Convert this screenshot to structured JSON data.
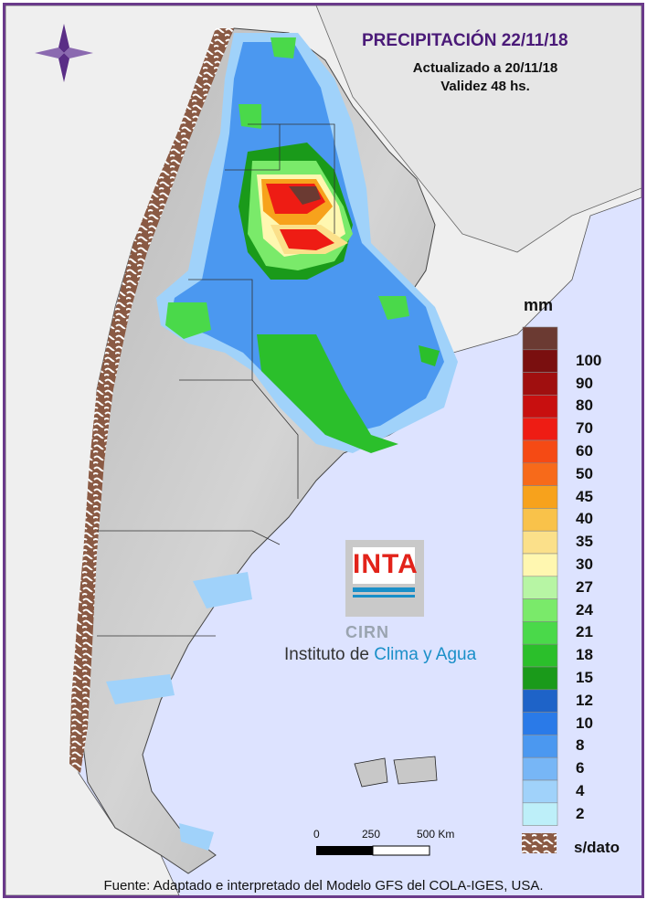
{
  "header": {
    "title": "PRECIPITACIÓN 22/11/18",
    "updated": "Actualizado a 20/11/18",
    "validity": "Validez 48 hs."
  },
  "legend": {
    "unit": "mm",
    "levels": [
      {
        "label": "",
        "color": "#6b3a32"
      },
      {
        "label": "100",
        "color": "#7a0f0f"
      },
      {
        "label": "90",
        "color": "#a00f0f"
      },
      {
        "label": "80",
        "color": "#c80f0f"
      },
      {
        "label": "70",
        "color": "#ee1c14"
      },
      {
        "label": "60",
        "color": "#f54a14"
      },
      {
        "label": "50",
        "color": "#f76a1a"
      },
      {
        "label": "45",
        "color": "#f7a21c"
      },
      {
        "label": "40",
        "color": "#f9c24a"
      },
      {
        "label": "35",
        "color": "#fbe08a"
      },
      {
        "label": "30",
        "color": "#fff7b0"
      },
      {
        "label": "27",
        "color": "#b7f5a4"
      },
      {
        "label": "24",
        "color": "#7aea6a"
      },
      {
        "label": "21",
        "color": "#4ad94a"
      },
      {
        "label": "18",
        "color": "#2bbf2b"
      },
      {
        "label": "15",
        "color": "#1a9a1a"
      },
      {
        "label": "12",
        "color": "#1e63c8"
      },
      {
        "label": "10",
        "color": "#2a7ae8"
      },
      {
        "label": "8",
        "color": "#4b98f0"
      },
      {
        "label": "6",
        "color": "#77b6f6"
      },
      {
        "label": "4",
        "color": "#a0d2fa"
      },
      {
        "label": "2",
        "color": "#bdeff9"
      }
    ],
    "no_data_label": "s/dato"
  },
  "scale_bar": {
    "ticks": [
      "0",
      "250",
      "500 Km"
    ]
  },
  "logo": {
    "inta": "INTA",
    "cirn": "CIRN",
    "institute_prefix": "Instituto de",
    "institute_highlight": "Clima y Agua"
  },
  "footer": {
    "source": "Fuente: Adaptado e interpretado del Modelo GFS del COLA-IGES, USA."
  },
  "colors": {
    "frame": "#6a3a8a",
    "ocean": "#dde3ff",
    "neighbor_land": "#efefef",
    "argentina_relief": "#c2c2c2",
    "no_data_hatch": "#8a5a44"
  }
}
